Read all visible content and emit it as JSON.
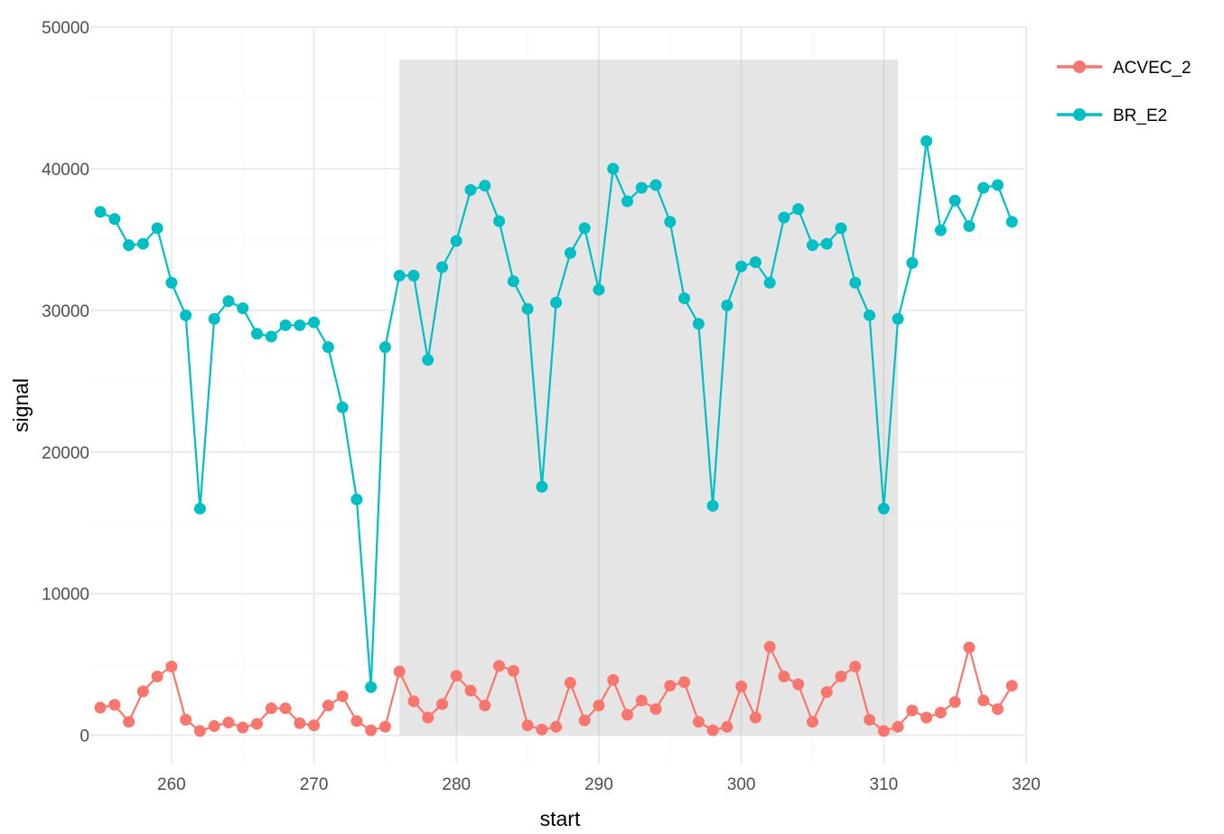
{
  "chart_data": {
    "type": "line",
    "xlabel": "start",
    "ylabel": "signal",
    "xlim": [
      254.3,
      320
    ],
    "ylim": [
      -2000,
      50000
    ],
    "x_ticks": [
      260,
      270,
      280,
      290,
      300,
      310,
      320
    ],
    "x_tick_labels": [
      "260",
      "270",
      "280",
      "290",
      "300",
      "310",
      "320"
    ],
    "y_ticks": [
      0,
      10000,
      20000,
      30000,
      40000,
      50000
    ],
    "y_tick_labels": [
      "0",
      "10000",
      "20000",
      "30000",
      "40000",
      "50000"
    ],
    "grid": true,
    "legend_position": "right",
    "highlight_region": {
      "x": [
        276,
        311
      ],
      "y": [
        0,
        47700
      ],
      "color": "#e5e5e5"
    },
    "x": [
      255,
      256,
      257,
      258,
      259,
      260,
      261,
      262,
      263,
      264,
      265,
      266,
      267,
      268,
      269,
      270,
      271,
      272,
      273,
      274,
      275,
      276,
      277,
      278,
      279,
      280,
      281,
      282,
      283,
      284,
      285,
      286,
      287,
      288,
      289,
      290,
      291,
      292,
      293,
      294,
      295,
      296,
      297,
      298,
      299,
      300,
      301,
      302,
      303,
      304,
      305,
      306,
      307,
      308,
      309,
      310,
      311,
      312,
      313,
      314,
      315,
      316,
      317,
      318,
      319
    ],
    "series": [
      {
        "name": "ACVEC_2",
        "color": "#f8766d",
        "values": [
          1950,
          2150,
          950,
          3100,
          4150,
          4850,
          1100,
          300,
          650,
          900,
          550,
          800,
          1900,
          1900,
          850,
          700,
          2100,
          2750,
          1000,
          350,
          600,
          4500,
          2400,
          1250,
          2200,
          4200,
          3150,
          2100,
          4900,
          4550,
          700,
          400,
          600,
          3700,
          1050,
          2100,
          3900,
          1450,
          2450,
          1850,
          3500,
          3750,
          950,
          350,
          600,
          3450,
          1250,
          6250,
          4150,
          3600,
          950,
          3050,
          4150,
          4850,
          1100,
          300,
          600,
          1750,
          1250,
          1600,
          2350,
          6200,
          2450,
          1850,
          3500
        ]
      },
      {
        "name": "BR_E2",
        "color": "#00bfc4",
        "values": [
          36950,
          36450,
          34600,
          34700,
          35800,
          31950,
          29650,
          16000,
          29400,
          30650,
          30150,
          28350,
          28150,
          28950,
          28950,
          29150,
          27400,
          23150,
          16650,
          3400,
          27400,
          32450,
          32450,
          26500,
          33050,
          34900,
          38500,
          38800,
          36300,
          32050,
          30100,
          17550,
          30550,
          34050,
          35800,
          31450,
          40000,
          37700,
          38650,
          38850,
          36250,
          30850,
          29050,
          16200,
          30350,
          33100,
          33400,
          31950,
          36550,
          37150,
          34600,
          34700,
          35800,
          31950,
          29650,
          16000,
          29400,
          33350,
          41950,
          35650,
          37750,
          35950,
          38650,
          38850,
          36250
        ]
      }
    ]
  }
}
